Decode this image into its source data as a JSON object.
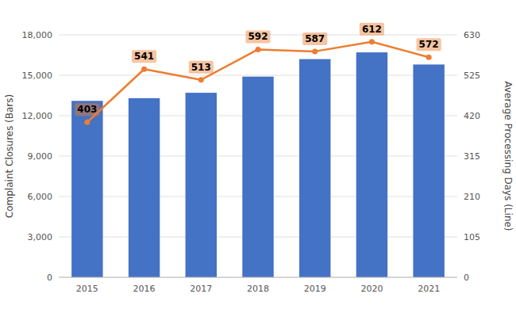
{
  "chart_data": {
    "type": "bar",
    "categories": [
      "2015",
      "2016",
      "2017",
      "2018",
      "2019",
      "2020",
      "2021"
    ],
    "ylabel": "Complaint Closures (Bars)",
    "y2label": "Average Processing Days (Line)",
    "ylim": [
      0,
      18000
    ],
    "yticks": [
      0,
      {
        "value": 3000,
        "label": "3,000"
      },
      {
        "value": 6000,
        "label": "6,000"
      },
      {
        "value": 9000,
        "label": "9,000"
      },
      {
        "value": 12000,
        "label": "12,000"
      },
      {
        "value": 15000,
        "label": "15,000"
      },
      {
        "value": 18000,
        "label": "18,000"
      }
    ],
    "y2lim": [
      0,
      630
    ],
    "y2ticks": [
      0,
      105,
      210,
      315,
      420,
      525,
      630
    ],
    "grid": true,
    "series": [
      {
        "type": "bar",
        "color": "#4472C4",
        "values": [
          13100,
          13300,
          13700,
          14900,
          16200,
          16700,
          15800
        ]
      },
      {
        "type": "line",
        "axis": "y2",
        "color": "#ED7D31",
        "marker": "circle",
        "data_labels": true,
        "values": [
          403,
          541,
          513,
          592,
          587,
          612,
          572
        ]
      }
    ]
  }
}
